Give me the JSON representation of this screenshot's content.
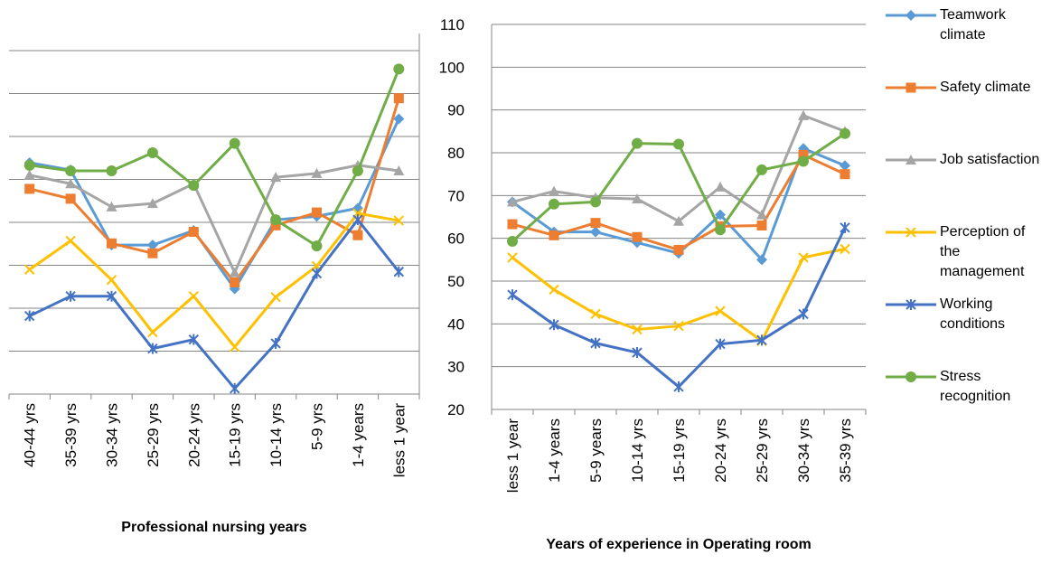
{
  "chart_data": [
    {
      "type": "line",
      "xlabel": "Professional nursing years",
      "categories": [
        "40-44 yrs",
        "35-39 yrs",
        "30-34 yrs",
        "25-29 yrs",
        "20-24 yrs",
        "15-19 yrs",
        "10-14 yrs",
        "5-9 yrs",
        "1-4 years",
        "less 1 year"
      ],
      "ylim": [
        20,
        104
      ],
      "yticks": [
        20,
        30,
        40,
        50,
        60,
        70,
        80,
        90,
        100
      ],
      "tick_labels": false,
      "grid": true,
      "series": [
        {
          "name": "Teamwork climate",
          "color": "#5b9bd5",
          "marker": "diamond",
          "values": [
            73.9,
            72.2,
            54.7,
            54.7,
            58.1,
            44.5,
            60.6,
            61.4,
            63.3,
            84.1
          ]
        },
        {
          "name": "Safety climate",
          "color": "#ed7d31",
          "marker": "square",
          "values": [
            67.8,
            65.5,
            55.1,
            52.8,
            57.8,
            46.0,
            59.3,
            62.3,
            57.0,
            88.9
          ]
        },
        {
          "name": "Job satisfaction",
          "color": "#a5a5a5",
          "marker": "triangle",
          "values": [
            71.0,
            69.0,
            63.6,
            64.4,
            69.0,
            48.3,
            70.5,
            71.4,
            73.3,
            72.0
          ]
        },
        {
          "name": "Perception of the management",
          "color": "#ffc000",
          "marker": "x",
          "values": [
            49.0,
            55.7,
            46.6,
            34.4,
            42.8,
            31.0,
            42.6,
            49.8,
            62.1,
            60.4
          ]
        },
        {
          "name": "Working conditions",
          "color": "#4472c4",
          "marker": "star",
          "values": [
            38.2,
            42.8,
            42.8,
            30.6,
            32.7,
            21.3,
            31.8,
            48.1,
            60.6,
            48.5
          ]
        },
        {
          "name": "Stress recognition",
          "color": "#70ad47",
          "marker": "circle",
          "values": [
            73.3,
            72.0,
            72.0,
            76.2,
            68.6,
            78.4,
            60.6,
            54.5,
            72.0,
            95.7
          ]
        }
      ]
    },
    {
      "type": "line",
      "xlabel": "Years of experience in Operating room",
      "categories": [
        "less 1 year",
        "1-4 years",
        "5-9 years",
        "10-14 yrs",
        "15-19 yrs",
        "20-24 yrs",
        "25-29 yrs",
        "30-34 yrs",
        "35-39 yrs"
      ],
      "ylim": [
        20,
        110
      ],
      "yticks": [
        20,
        30,
        40,
        50,
        60,
        70,
        80,
        90,
        100,
        110
      ],
      "tick_labels": true,
      "grid": true,
      "legend": "right",
      "series": [
        {
          "name": "Teamwork climate",
          "color": "#5b9bd5",
          "marker": "diamond",
          "values": [
            68.5,
            61.5,
            61.5,
            59,
            56.5,
            65.5,
            55,
            81,
            77
          ]
        },
        {
          "name": "Safety climate",
          "color": "#ed7d31",
          "marker": "square",
          "values": [
            63.3,
            60.7,
            63.6,
            60.3,
            57.3,
            62.8,
            63,
            79.5,
            75
          ]
        },
        {
          "name": "Job satisfaction",
          "color": "#a5a5a5",
          "marker": "triangle",
          "values": [
            68.5,
            71,
            69.5,
            69.2,
            64,
            72,
            65.5,
            88.7,
            85
          ]
        },
        {
          "name": "Perception of the management",
          "color": "#ffc000",
          "marker": "x",
          "values": [
            55.5,
            48,
            42.3,
            38.7,
            39.5,
            43,
            36,
            55.5,
            57.5
          ]
        },
        {
          "name": "Working conditions",
          "color": "#4472c4",
          "marker": "star",
          "values": [
            46.8,
            39.8,
            35.5,
            33.3,
            25.3,
            35.3,
            36.2,
            42.3,
            62.5
          ]
        },
        {
          "name": "Stress recognition",
          "color": "#70ad47",
          "marker": "circle",
          "values": [
            59.3,
            68,
            68.5,
            82.2,
            82,
            62,
            76,
            78,
            84.5
          ]
        }
      ]
    }
  ]
}
